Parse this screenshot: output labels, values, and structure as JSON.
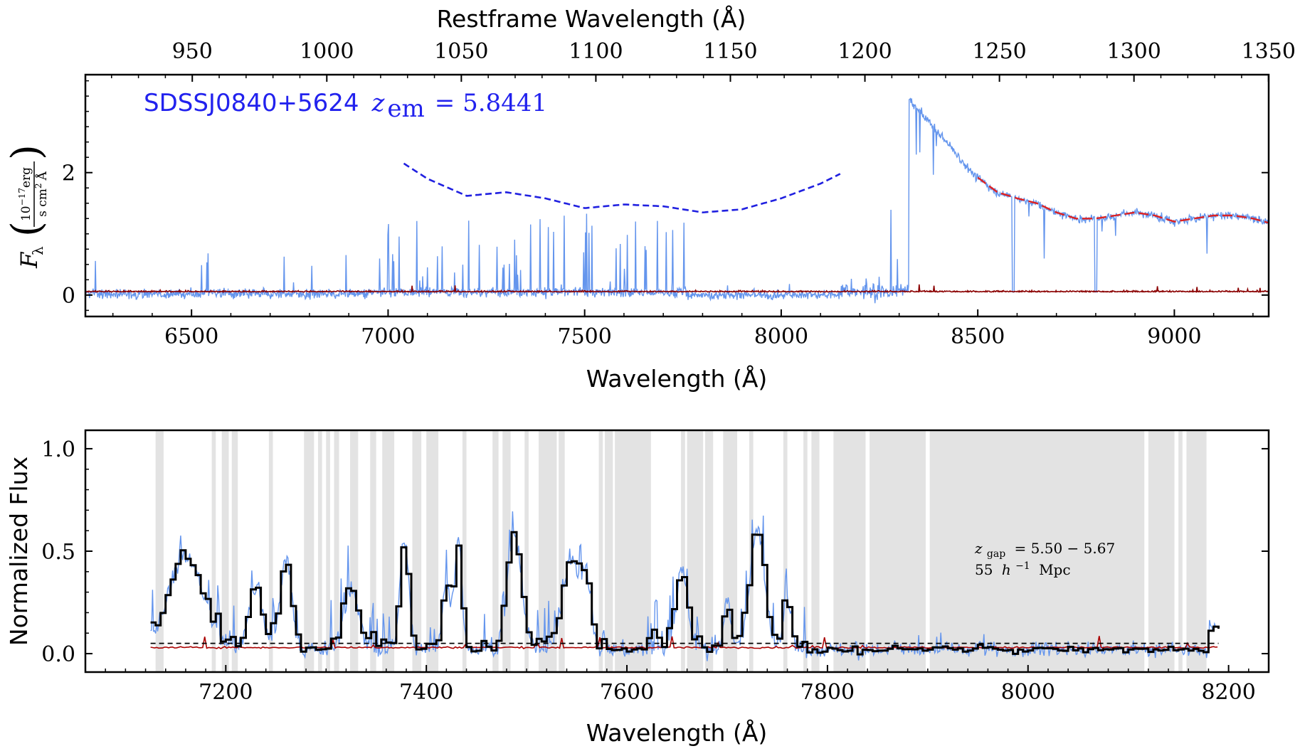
{
  "chart_data": [
    {
      "type": "line",
      "panel": "top",
      "title": "",
      "object_label": {
        "name": "SDSSJ0840+5624",
        "z_symbol": "z",
        "z_sub": "em",
        "z_eq": "= 5.8441"
      },
      "xlabel": "Wavelength (Å)",
      "top_xlabel": "Restframe Wavelength (Å)",
      "ylabel": {
        "symbol": "F",
        "sub": "λ",
        "num": "10",
        "num_sup": "−17",
        "num_unit": "erg",
        "den": "s cm",
        "den_sup": "2",
        "den_unit": "Å"
      },
      "xlim": [
        6230,
        9240
      ],
      "ylim": [
        -0.35,
        3.6
      ],
      "x_ticks": [
        6500,
        7000,
        7500,
        8000,
        8500,
        9000
      ],
      "x_tick_labels": [
        "6500",
        "7000",
        "7500",
        "8000",
        "8500",
        "9000"
      ],
      "y_ticks": [
        0,
        2
      ],
      "y_tick_labels": [
        "0",
        "2"
      ],
      "top_ticks": [
        950,
        1000,
        1050,
        1100,
        1150,
        1200,
        1250,
        1300,
        1350
      ],
      "top_tick_labels": [
        "950",
        "1000",
        "1050",
        "1100",
        "1150",
        "1200",
        "1250",
        "1300",
        "1350"
      ],
      "z_em": 5.8441,
      "series": [
        {
          "role": "flux",
          "color": "#6495ED"
        },
        {
          "role": "continuum",
          "color": "#2020e0",
          "style": "dashed",
          "x": [
            7040,
            7100,
            7200,
            7300,
            7400,
            7500,
            7600,
            7700,
            7800,
            7900,
            8000,
            8100,
            8150
          ],
          "y": [
            2.15,
            1.9,
            1.62,
            1.68,
            1.58,
            1.42,
            1.48,
            1.45,
            1.35,
            1.4,
            1.58,
            1.82,
            1.98
          ]
        },
        {
          "role": "continuum_fit",
          "color": "#dd2222",
          "style": "dashed",
          "x": [
            8500,
            8550,
            8600,
            8650,
            8700,
            8750,
            8800,
            8850,
            8900,
            8950,
            9000,
            9050,
            9100,
            9150,
            9200,
            9240
          ],
          "y": [
            1.92,
            1.68,
            1.58,
            1.5,
            1.35,
            1.25,
            1.25,
            1.3,
            1.35,
            1.3,
            1.2,
            1.25,
            1.3,
            1.3,
            1.25,
            1.18
          ]
        },
        {
          "role": "error",
          "color": "#8B0000"
        }
      ]
    },
    {
      "type": "line",
      "panel": "bottom",
      "title": "",
      "xlabel": "Wavelength (Å)",
      "ylabel": "Normalized Flux",
      "xlim": [
        7060,
        8240
      ],
      "ylim": [
        -0.09,
        1.09
      ],
      "x_ticks": [
        7200,
        7400,
        7600,
        7800,
        8000,
        8200
      ],
      "x_tick_labels": [
        "7200",
        "7400",
        "7600",
        "7800",
        "8000",
        "8200"
      ],
      "y_ticks": [
        0.0,
        0.5,
        1.0
      ],
      "y_tick_labels": [
        "0.0",
        "0.5",
        "1.0"
      ],
      "annotation": {
        "z_symbol": "z",
        "z_sub": "gap",
        "z_eq": "= 5.50 − 5.67",
        "scale": "55",
        "h_symbol": "h",
        "h_sup": "−1",
        "unit": "Mpc"
      },
      "threshold": 0.05,
      "series": [
        {
          "role": "normalized_flux",
          "color": "#6495ED"
        },
        {
          "role": "binned_flux",
          "color": "#000000",
          "style": "steps"
        },
        {
          "role": "normalized_error",
          "color": "#aa0000"
        },
        {
          "role": "threshold",
          "color": "#000000",
          "style": "dashed"
        }
      ],
      "shaded_regions_angstrom": [
        [
          7130,
          7138
        ],
        [
          7186,
          7190
        ],
        [
          7196,
          7203
        ],
        [
          7206,
          7212
        ],
        [
          7243,
          7247
        ],
        [
          7278,
          7288
        ],
        [
          7292,
          7296
        ],
        [
          7300,
          7304
        ],
        [
          7308,
          7313
        ],
        [
          7324,
          7332
        ],
        [
          7344,
          7350
        ],
        [
          7356,
          7368
        ],
        [
          7386,
          7395
        ],
        [
          7400,
          7412
        ],
        [
          7436,
          7440
        ],
        [
          7466,
          7472
        ],
        [
          7476,
          7484
        ],
        [
          7498,
          7502
        ],
        [
          7512,
          7530
        ],
        [
          7532,
          7538
        ],
        [
          7572,
          7576
        ],
        [
          7578,
          7586
        ],
        [
          7588,
          7624
        ],
        [
          7654,
          7658
        ],
        [
          7660,
          7676
        ],
        [
          7678,
          7686
        ],
        [
          7696,
          7710
        ],
        [
          7722,
          7726
        ],
        [
          7756,
          7760
        ],
        [
          7776,
          7780
        ],
        [
          7784,
          7792
        ],
        [
          7806,
          7838
        ],
        [
          7842,
          7898
        ],
        [
          7902,
          8116
        ],
        [
          8120,
          8146
        ],
        [
          8150,
          8154
        ],
        [
          8158,
          8178
        ]
      ]
    }
  ]
}
